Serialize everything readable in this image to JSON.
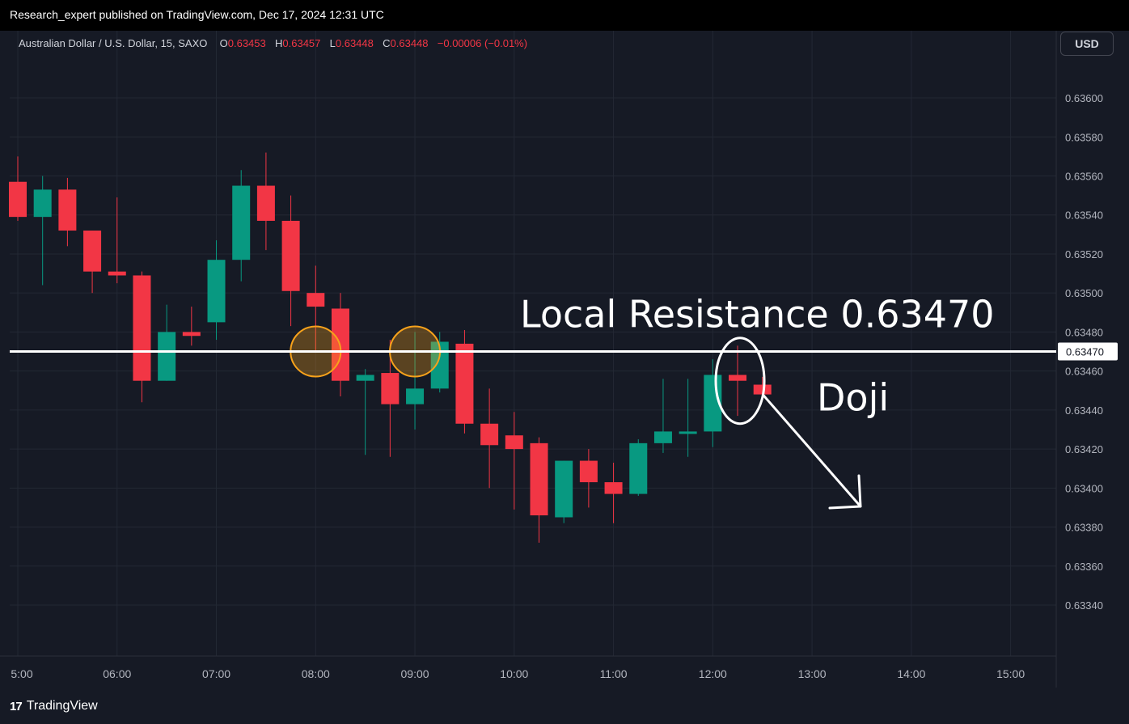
{
  "header": {
    "published_text": "Research_expert published on TradingView.com, Dec 17, 2024 12:31 UTC"
  },
  "legend": {
    "symbol": "Australian Dollar / U.S. Dollar, 15, SAXO",
    "o_label": "O",
    "o_value": "0.63453",
    "h_label": "H",
    "h_value": "0.63457",
    "l_label": "L",
    "l_value": "0.63448",
    "c_label": "C",
    "c_value": "0.63448",
    "change": "−0.00006 (−0.01%)"
  },
  "currency_button": "USD",
  "footer": {
    "brand": "TradingView",
    "logo_mark": "17"
  },
  "colors": {
    "up": "#089981",
    "down": "#f23645",
    "background": "#161a25",
    "grid": "#232834",
    "axis_text": "#b2b5be",
    "annotation": "#ffffff",
    "circle_highlight": "#f7a21b"
  },
  "chart_data": {
    "type": "candlestick",
    "symbol": "Australian Dollar / U.S. Dollar",
    "interval": "15",
    "source": "SAXO",
    "x_ticks": [
      "5:00",
      "06:00",
      "07:00",
      "08:00",
      "09:00",
      "10:00",
      "11:00",
      "12:00",
      "13:00",
      "14:00",
      "15:00"
    ],
    "y_ticks": [
      "0.63600",
      "0.63580",
      "0.63560",
      "0.63540",
      "0.63520",
      "0.63500",
      "0.63480",
      "0.63460",
      "0.63440",
      "0.63420",
      "0.63400",
      "0.63380",
      "0.63360",
      "0.63340"
    ],
    "y_tick_values": [
      0.636,
      0.6358,
      0.6356,
      0.6354,
      0.6352,
      0.635,
      0.6348,
      0.6346,
      0.6344,
      0.6342,
      0.634,
      0.6338,
      0.6336,
      0.6334
    ],
    "ylim": [
      0.63323,
      0.63622
    ],
    "x_start": "05:00",
    "x_end": "15:30",
    "grid": true,
    "candles": [
      {
        "t": "05:00",
        "o": 0.63557,
        "h": 0.6357,
        "l": 0.63537,
        "c": 0.63539
      },
      {
        "t": "05:15",
        "o": 0.63539,
        "h": 0.6356,
        "l": 0.63504,
        "c": 0.63553
      },
      {
        "t": "05:30",
        "o": 0.63553,
        "h": 0.63559,
        "l": 0.63524,
        "c": 0.63532
      },
      {
        "t": "05:45",
        "o": 0.63532,
        "h": 0.63532,
        "l": 0.635,
        "c": 0.63511
      },
      {
        "t": "06:00",
        "o": 0.63511,
        "h": 0.63549,
        "l": 0.63505,
        "c": 0.63509
      },
      {
        "t": "06:15",
        "o": 0.63509,
        "h": 0.63511,
        "l": 0.63444,
        "c": 0.63455
      },
      {
        "t": "06:30",
        "o": 0.63455,
        "h": 0.63494,
        "l": 0.63455,
        "c": 0.6348
      },
      {
        "t": "06:45",
        "o": 0.6348,
        "h": 0.63493,
        "l": 0.63473,
        "c": 0.63478
      },
      {
        "t": "07:00",
        "o": 0.63485,
        "h": 0.63527,
        "l": 0.63476,
        "c": 0.63517
      },
      {
        "t": "07:15",
        "o": 0.63517,
        "h": 0.63563,
        "l": 0.63506,
        "c": 0.63555
      },
      {
        "t": "07:30",
        "o": 0.63555,
        "h": 0.63572,
        "l": 0.63522,
        "c": 0.63537
      },
      {
        "t": "07:45",
        "o": 0.63537,
        "h": 0.6355,
        "l": 0.63483,
        "c": 0.63501
      },
      {
        "t": "08:00",
        "o": 0.635,
        "h": 0.63514,
        "l": 0.6347,
        "c": 0.63493
      },
      {
        "t": "08:15",
        "o": 0.63492,
        "h": 0.635,
        "l": 0.63447,
        "c": 0.63455
      },
      {
        "t": "08:30",
        "o": 0.63455,
        "h": 0.63461,
        "l": 0.63417,
        "c": 0.63458
      },
      {
        "t": "08:45",
        "o": 0.63459,
        "h": 0.63476,
        "l": 0.63416,
        "c": 0.63443
      },
      {
        "t": "09:00",
        "o": 0.63443,
        "h": 0.6348,
        "l": 0.6343,
        "c": 0.63451
      },
      {
        "t": "09:15",
        "o": 0.63451,
        "h": 0.6348,
        "l": 0.63449,
        "c": 0.63475
      },
      {
        "t": "09:30",
        "o": 0.63474,
        "h": 0.63481,
        "l": 0.63428,
        "c": 0.63433
      },
      {
        "t": "09:45",
        "o": 0.63433,
        "h": 0.63451,
        "l": 0.634,
        "c": 0.63422
      },
      {
        "t": "10:00",
        "o": 0.63427,
        "h": 0.63439,
        "l": 0.63389,
        "c": 0.6342
      },
      {
        "t": "10:15",
        "o": 0.63423,
        "h": 0.63426,
        "l": 0.63372,
        "c": 0.63386
      },
      {
        "t": "10:30",
        "o": 0.63385,
        "h": 0.63414,
        "l": 0.63382,
        "c": 0.63414
      },
      {
        "t": "10:45",
        "o": 0.63414,
        "h": 0.6342,
        "l": 0.6339,
        "c": 0.63403
      },
      {
        "t": "11:00",
        "o": 0.63403,
        "h": 0.63413,
        "l": 0.63382,
        "c": 0.63397
      },
      {
        "t": "11:15",
        "o": 0.63397,
        "h": 0.63425,
        "l": 0.63396,
        "c": 0.63423
      },
      {
        "t": "11:30",
        "o": 0.63423,
        "h": 0.63456,
        "l": 0.63418,
        "c": 0.63429
      },
      {
        "t": "11:45",
        "o": 0.63428,
        "h": 0.63456,
        "l": 0.63416,
        "c": 0.63429
      },
      {
        "t": "12:00",
        "o": 0.63429,
        "h": 0.63466,
        "l": 0.63421,
        "c": 0.63458
      },
      {
        "t": "12:15",
        "o": 0.63458,
        "h": 0.63473,
        "l": 0.63437,
        "c": 0.63455
      },
      {
        "t": "12:30",
        "o": 0.63453,
        "h": 0.63457,
        "l": 0.63448,
        "c": 0.63448
      }
    ],
    "annotations": {
      "resistance_level": 0.6347,
      "resistance_label": "Local Resistance 0.63470",
      "resistance_price_tag": "0.63470",
      "doji_label": "Doji",
      "highlight_circles_at": [
        "08:00",
        "09:00"
      ],
      "doji_candle_at": "12:15"
    }
  }
}
